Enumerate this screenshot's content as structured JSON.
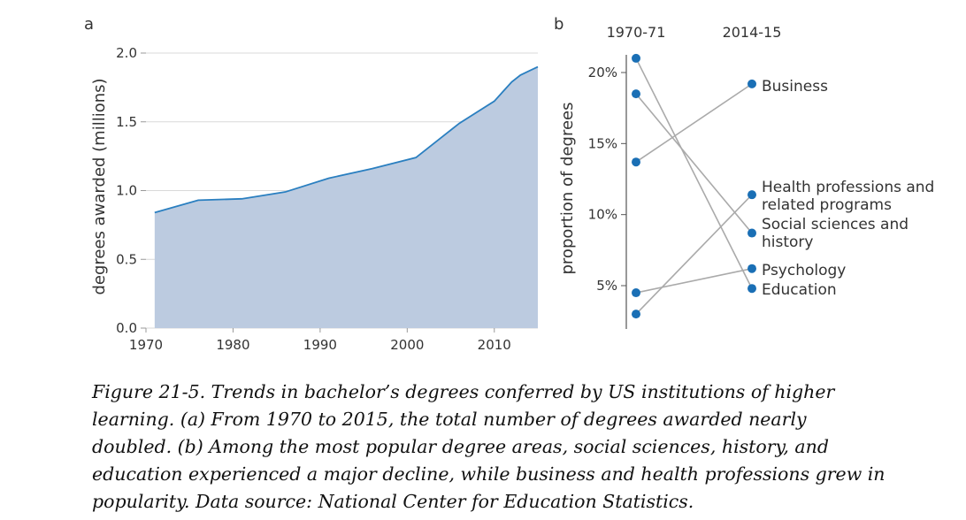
{
  "chart_data": [
    {
      "panel_label": "a",
      "type": "area",
      "title": "",
      "xlabel": "",
      "ylabel": "degrees awarded (millions)",
      "xlim": [
        1970,
        2015
      ],
      "ylim": [
        0,
        2.0
      ],
      "x_ticks": [
        1970,
        1980,
        1990,
        2000,
        2010
      ],
      "y_ticks": [
        "0.0",
        "0.5",
        "1.0",
        "1.5",
        "2.0"
      ],
      "grid": "horizontal",
      "series": [
        {
          "x": [
            1971,
            1976,
            1981,
            1986,
            1991,
            1996,
            2001,
            2006,
            2010,
            2011,
            2012,
            2013,
            2014,
            2015
          ],
          "values": [
            0.84,
            0.93,
            0.94,
            0.99,
            1.09,
            1.16,
            1.24,
            1.49,
            1.65,
            1.72,
            1.79,
            1.84,
            1.87,
            1.9
          ]
        }
      ],
      "colors": {
        "line": "#2a7fc0",
        "fill": "#bccbe0",
        "grid": "#d9d9d9"
      }
    },
    {
      "panel_label": "b",
      "type": "slope",
      "title": "",
      "ylabel": "proportion of degrees",
      "columns": [
        "1970-71",
        "2014-15"
      ],
      "ylim": [
        3,
        21
      ],
      "y_ticks": [
        5,
        10,
        15,
        20
      ],
      "y_tick_labels": [
        "5%",
        "10%",
        "15%",
        "20%"
      ],
      "series": [
        {
          "label": "Business",
          "values": [
            13.7,
            19.2
          ]
        },
        {
          "label": "Health professions and related programs",
          "values": [
            3.0,
            11.4
          ]
        },
        {
          "label": "Social sciences and history",
          "values": [
            18.5,
            8.7
          ]
        },
        {
          "label": "Psychology",
          "values": [
            4.5,
            6.2
          ]
        },
        {
          "label": "Education",
          "values": [
            21.0,
            4.8
          ]
        }
      ],
      "label_lines": [
        [
          "Business"
        ],
        [
          "Health professions and",
          "related programs"
        ],
        [
          "Social sciences and",
          "history"
        ],
        [
          "Psychology"
        ],
        [
          "Education"
        ]
      ],
      "colors": {
        "dot": "#1a6fb5",
        "line": "#aaaaaa"
      }
    }
  ],
  "caption": "Figure 21-5. Trends in bachelor’s degrees conferred by US institutions of higher learning. (a) From 1970 to 2015, the total number of degrees awarded nearly doubled. (b) Among the most popular degree areas, social sciences, history, and education experienced a major decline, while business and health professions grew in popularity. Data source: National Center for Education Statistics."
}
